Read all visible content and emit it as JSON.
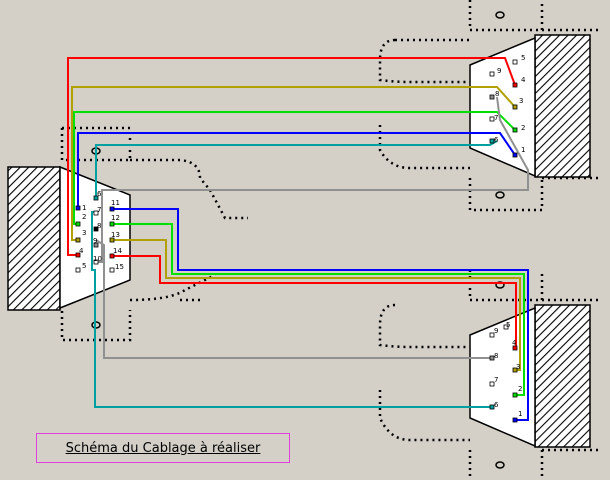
{
  "caption": "Schéma du Cablage à réaliser",
  "colors": {
    "background": "#d4d0c8",
    "red": "#ff0000",
    "olive": "#b0a000",
    "green": "#00e000",
    "blue": "#0000ff",
    "cyan": "#00a0a0",
    "gray": "#909090",
    "hatch": "#000000",
    "caption_border": "#e040e0"
  },
  "connectors": {
    "left_db15": {
      "pins": [
        "1",
        "2",
        "3",
        "4",
        "5",
        "6",
        "7",
        "8",
        "9",
        "10",
        "11",
        "12",
        "13",
        "14",
        "15"
      ]
    },
    "top_right_db9": {
      "pins": [
        "1",
        "2",
        "3",
        "4",
        "5",
        "6",
        "7",
        "8",
        "9"
      ]
    },
    "bottom_right_db9": {
      "pins": [
        "1",
        "2",
        "3",
        "4",
        "5",
        "6",
        "7",
        "8",
        "9"
      ]
    }
  },
  "wires": [
    {
      "color": "red",
      "from": "left_db15.1",
      "to": "top_right_db9.4"
    },
    {
      "color": "olive",
      "from": "left_db15.2",
      "to": "top_right_db9.3"
    },
    {
      "color": "green",
      "from": "left_db15.3",
      "to": "top_right_db9.2"
    },
    {
      "color": "blue",
      "from": "left_db15.4",
      "to": "top_right_db9.1"
    },
    {
      "color": "cyan",
      "from": "left_db15.6",
      "to": "top_right_db9.6"
    },
    {
      "color": "gray",
      "from": "left_db15.10",
      "to": "top_right_db9.8"
    },
    {
      "color": "blue",
      "from": "left_db15.11",
      "to": "bottom_right_db9.1"
    },
    {
      "color": "green",
      "from": "left_db15.12",
      "to": "bottom_right_db9.2"
    },
    {
      "color": "olive",
      "from": "left_db15.13",
      "to": "bottom_right_db9.3"
    },
    {
      "color": "red",
      "from": "left_db15.14",
      "to": "bottom_right_db9.4"
    },
    {
      "color": "gray",
      "from": "left_db15.9",
      "to": "bottom_right_db9.8"
    },
    {
      "color": "cyan",
      "from": "left_db15.7",
      "to": "bottom_right_db9.6"
    }
  ]
}
